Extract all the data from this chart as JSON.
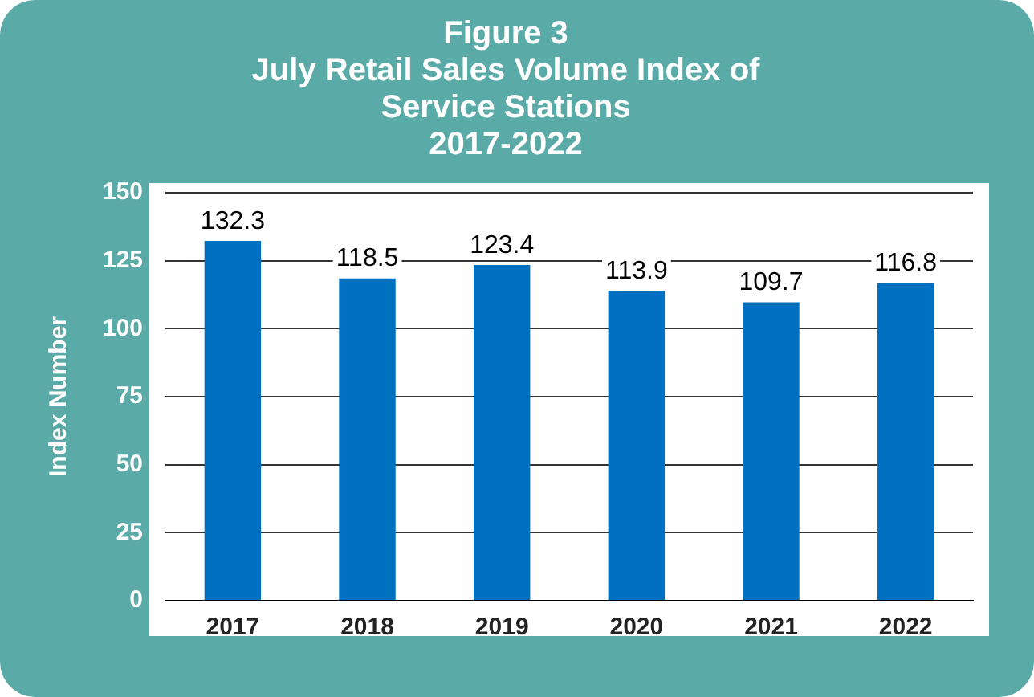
{
  "chart_data": {
    "type": "bar",
    "title": "Figure 3\nJuly Retail Sales Volume Index of\nService Stations\n2017-2022",
    "ylabel": "Index Number",
    "categories": [
      "2017",
      "2018",
      "2019",
      "2020",
      "2021",
      "2022"
    ],
    "values": [
      132.3,
      118.5,
      123.4,
      113.9,
      109.7,
      116.8
    ],
    "color": "#0070c0",
    "ylim": [
      0,
      150
    ],
    "yticks": [
      0,
      25,
      50,
      75,
      100,
      125,
      150
    ],
    "grid": "y",
    "data_labels": true
  }
}
